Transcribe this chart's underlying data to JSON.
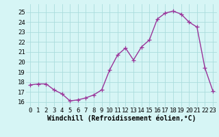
{
  "x": [
    0,
    1,
    2,
    3,
    4,
    5,
    6,
    7,
    8,
    9,
    10,
    11,
    12,
    13,
    14,
    15,
    16,
    17,
    18,
    19,
    20,
    21,
    22,
    23
  ],
  "y": [
    17.7,
    17.8,
    17.8,
    17.2,
    16.8,
    16.1,
    16.2,
    16.4,
    16.7,
    17.2,
    19.2,
    20.7,
    21.4,
    20.2,
    21.5,
    22.2,
    24.3,
    24.9,
    25.1,
    24.8,
    24.0,
    23.5,
    19.4,
    17.1
  ],
  "line_color": "#993399",
  "marker": "+",
  "marker_size": 4,
  "bg_color": "#d6f5f5",
  "grid_color": "#aadddd",
  "xlabel": "Windchill (Refroidissement éolien,°C)",
  "xlabel_fontsize": 7,
  "xtick_labels": [
    "0",
    "1",
    "2",
    "3",
    "4",
    "5",
    "6",
    "7",
    "8",
    "9",
    "10",
    "11",
    "12",
    "13",
    "14",
    "15",
    "16",
    "17",
    "18",
    "19",
    "20",
    "21",
    "22",
    "23"
  ],
  "ytick_labels": [
    "16",
    "17",
    "18",
    "19",
    "20",
    "21",
    "22",
    "23",
    "24",
    "25"
  ],
  "ylim": [
    15.5,
    25.8
  ],
  "xlim": [
    -0.5,
    23.5
  ],
  "tick_fontsize": 6.5,
  "linewidth": 1.0
}
